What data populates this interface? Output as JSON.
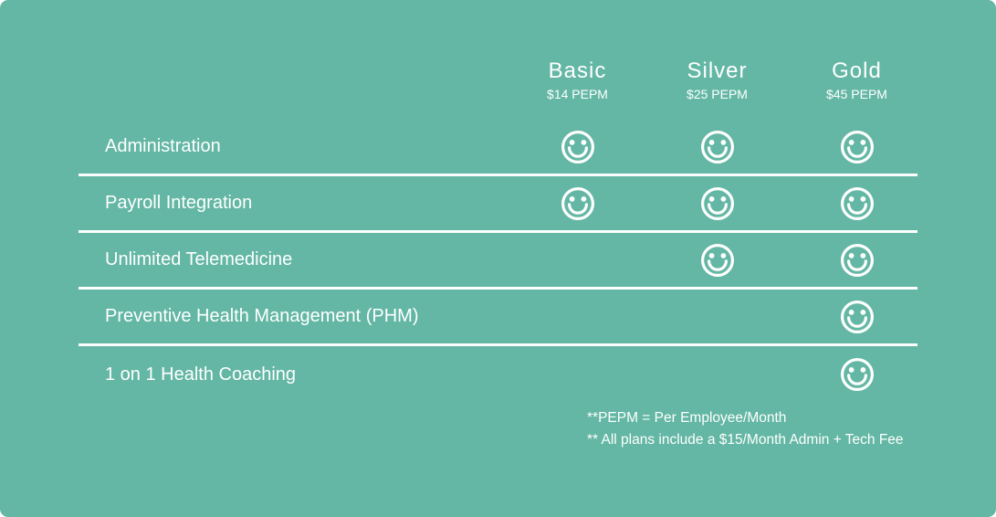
{
  "theme": {
    "background_color": "#63b7a4",
    "text_color": "#ffffff",
    "divider_color": "#ffffff"
  },
  "chart_data": {
    "type": "table",
    "title": "",
    "columns": [
      {
        "name": "Basic",
        "price": "$14 PEPM"
      },
      {
        "name": "Silver",
        "price": "$25 PEPM"
      },
      {
        "name": "Gold",
        "price": "$45 PEPM"
      }
    ],
    "rows": [
      {
        "label": "Administration",
        "included": [
          true,
          true,
          true
        ]
      },
      {
        "label": "Payroll Integration",
        "included": [
          true,
          true,
          true
        ]
      },
      {
        "label": "Unlimited Telemedicine",
        "included": [
          false,
          true,
          true
        ]
      },
      {
        "label": "Preventive Health Management (PHM)",
        "included": [
          false,
          false,
          true
        ]
      },
      {
        "label": "1 on 1 Health Coaching",
        "included": [
          false,
          false,
          true
        ]
      }
    ],
    "included_marker": "smiley-face-icon",
    "annotations": [
      "**PEPM = Per Employee/Month",
      "** All plans include a $15/Month Admin + Tech Fee"
    ],
    "layout": {
      "legend": "none",
      "grid": "horizontal-dividers"
    }
  }
}
